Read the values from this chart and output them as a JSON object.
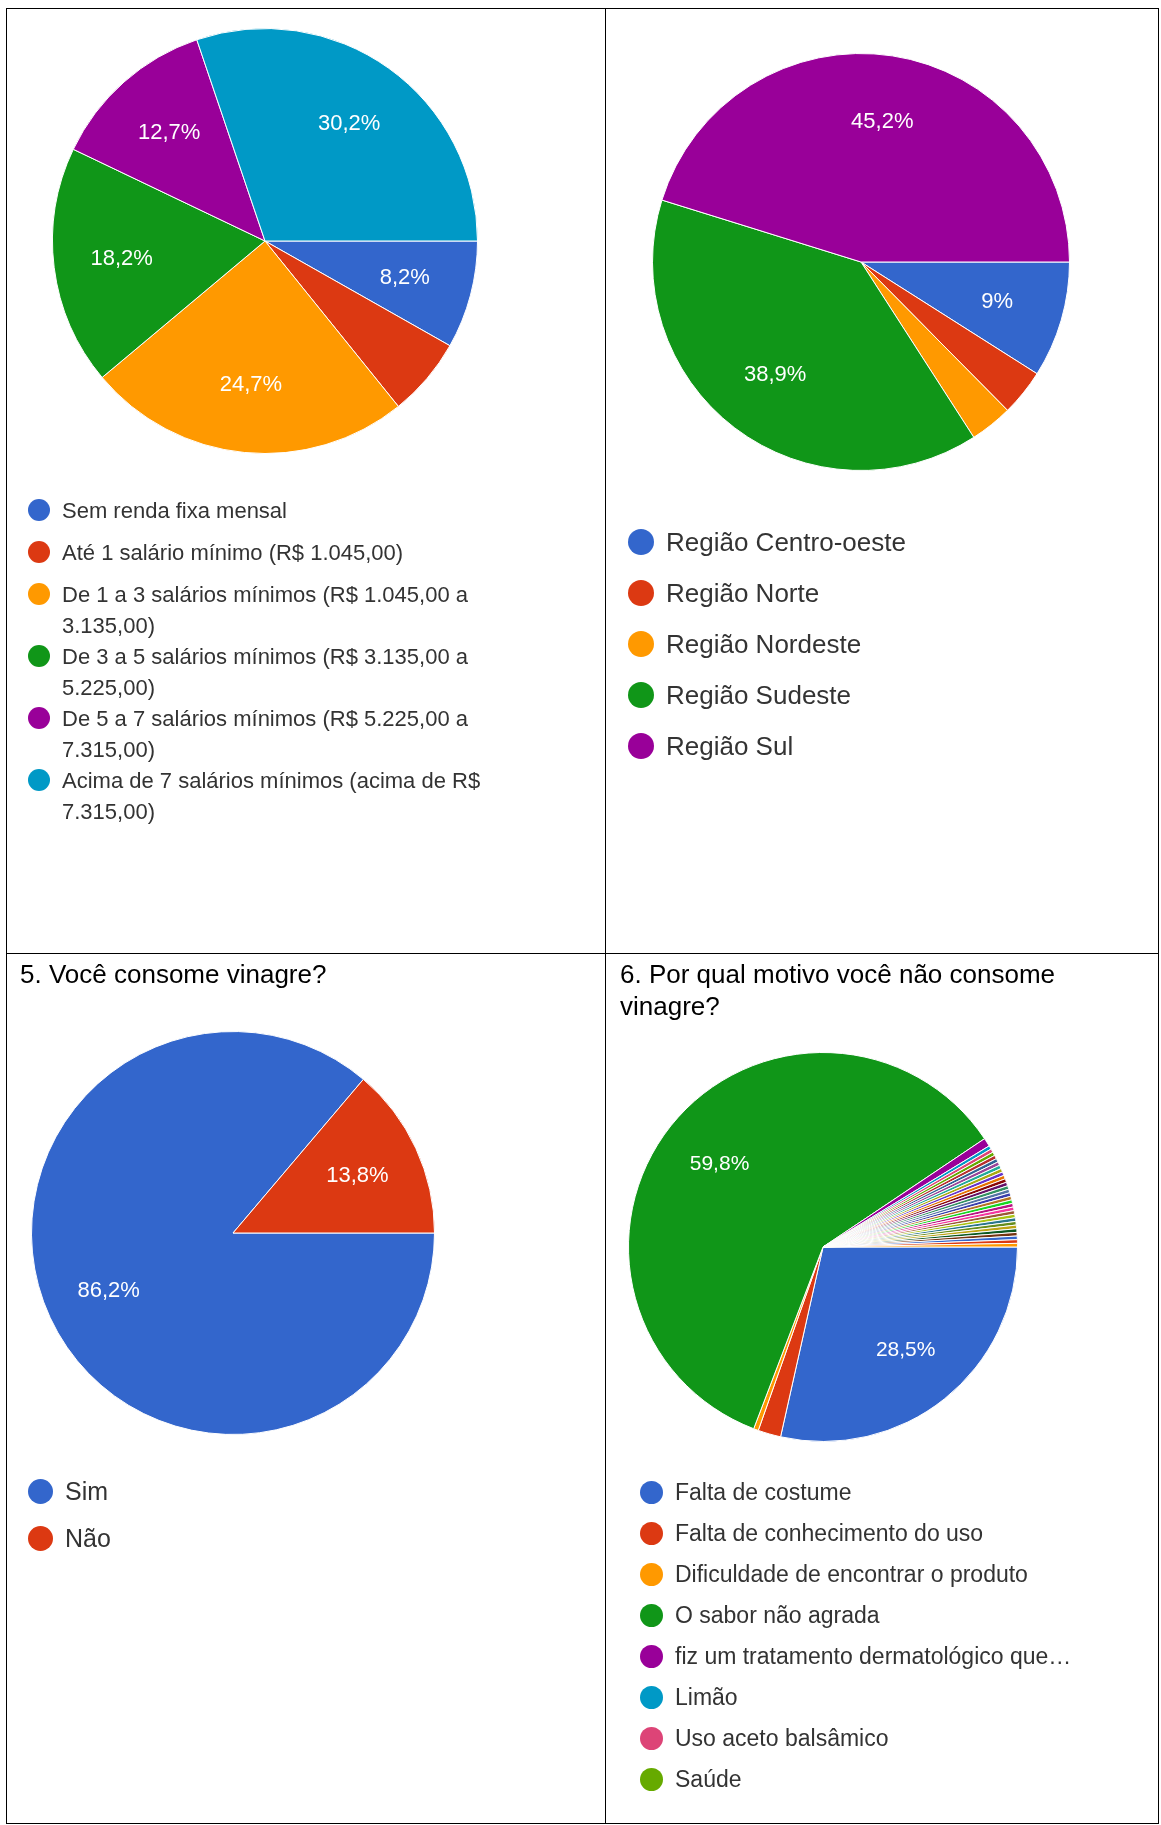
{
  "chart_data": [
    {
      "type": "pie",
      "categories": [
        "Sem renda fixa mensal",
        "Até 1 salário mínimo (R$ 1.045,00)",
        "De 1 a 3 salários mínimos (R$ 1.045,00 a 3.135,00)",
        "De 3 a 5 salários mínimos (R$ 3.135,00 a 5.225,00)",
        "De 5 a 7 salários mínimos (R$ 5.225,00 a 7.315,00)",
        "Acima de 7 salários mínimos (acima de R$ 7.315,00)"
      ],
      "values": [
        8.2,
        6.0,
        24.7,
        18.2,
        12.7,
        30.2
      ],
      "colors": [
        "#3366cc",
        "#dc3912",
        "#ff9900",
        "#109618",
        "#990099",
        "#0099c6"
      ],
      "value_labels": [
        "8,2%",
        null,
        "24,7%",
        "18,2%",
        "12,7%",
        "30,2%"
      ],
      "legend": "bottom"
    },
    {
      "type": "pie",
      "categories": [
        "Região Centro-oeste",
        "Região Norte",
        "Região Nordeste",
        "Região Sudeste",
        "Região Sul"
      ],
      "values": [
        9,
        3.6,
        3.3,
        38.9,
        45.2
      ],
      "colors": [
        "#3366cc",
        "#dc3912",
        "#ff9900",
        "#109618",
        "#990099"
      ],
      "value_labels": [
        "9%",
        null,
        null,
        "38,9%",
        "45,2%"
      ],
      "legend": "bottom"
    },
    {
      "type": "pie",
      "title": "5. Você consome vinagre?",
      "categories": [
        "Sim",
        "Não"
      ],
      "values": [
        86.2,
        13.8
      ],
      "colors": [
        "#3366cc",
        "#dc3912"
      ],
      "value_labels": [
        "86,2%",
        "13,8%"
      ],
      "legend": "bottom"
    },
    {
      "type": "pie",
      "title": "6. Por qual motivo você não consome vinagre?",
      "categories": [
        "Falta de costume",
        "Falta de conhecimento do uso",
        "Dificuldade de encontrar o produto",
        "O sabor não agrada",
        "fiz um tratamento dermatológico que…",
        "Limão",
        "Uso aceto balsâmico",
        "Saúde",
        null,
        null,
        null,
        null,
        null,
        null,
        null,
        null,
        null,
        null,
        null,
        null,
        null,
        null,
        null,
        null,
        null,
        null,
        null,
        null,
        null,
        null,
        null,
        null,
        null,
        null
      ],
      "values": [
        28.5,
        1.9,
        0.4,
        59.8,
        0.7,
        0.3,
        0.3,
        0.3,
        0.3,
        0.3,
        0.3,
        0.3,
        0.3,
        0.3,
        0.3,
        0.3,
        0.3,
        0.3,
        0.3,
        0.3,
        0.3,
        0.3,
        0.3,
        0.3,
        0.3,
        0.3,
        0.3,
        0.3,
        0.3,
        0.3,
        0.3,
        0.3,
        0.3,
        0.3
      ],
      "colors": [
        "#3366cc",
        "#dc3912",
        "#ff9900",
        "#109618",
        "#990099",
        "#0099c6",
        "#dd4477",
        "#66aa00",
        "#b82e2e",
        "#316395",
        "#994499",
        "#22aa99",
        "#aaaa11",
        "#6633cc",
        "#e67300",
        "#8b0707",
        "#651067",
        "#329262",
        "#5574a6",
        "#3b3eac",
        "#b77322",
        "#16d620",
        "#b91383",
        "#f4359e",
        "#9c5935",
        "#a9c413",
        "#2a778d",
        "#668d1c",
        "#bea413",
        "#0c5922",
        "#743411",
        "#3366cc",
        "#dc3912",
        "#ff9900"
      ],
      "value_labels": [
        "28,5%",
        null,
        null,
        "59,8%",
        null,
        null,
        null,
        null,
        null,
        null,
        null,
        null,
        null,
        null,
        null,
        null,
        null,
        null,
        null,
        null,
        null,
        null,
        null,
        null,
        null,
        null,
        null,
        null,
        null,
        null,
        null,
        null,
        null,
        null
      ],
      "legend": "bottom"
    }
  ]
}
